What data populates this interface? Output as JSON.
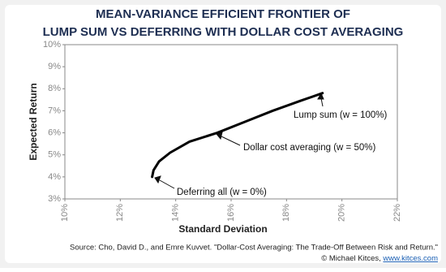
{
  "chart_data": {
    "type": "line",
    "title": [
      "MEAN-VARIANCE EFFICIENT FRONTIER OF",
      "LUMP SUM VS DEFERRING WITH DOLLAR COST AVERAGING"
    ],
    "x_label": "Standard Deviation",
    "y_label": "Expected Return",
    "x": [
      13.15,
      13.2,
      13.4,
      13.8,
      14.5,
      15.5,
      16.5,
      17.5,
      18.5,
      19.3
    ],
    "series": [
      {
        "color": "#000000",
        "values": [
          4.0,
          4.3,
          4.7,
          5.1,
          5.6,
          6.0,
          6.5,
          7.0,
          7.45,
          7.8
        ]
      }
    ],
    "xlim": [
      10,
      22
    ],
    "xticks": [
      {
        "value": 10,
        "label": "10%"
      },
      {
        "value": 12,
        "label": "12%"
      },
      {
        "value": 14,
        "label": "14%"
      },
      {
        "value": 16,
        "label": "16%"
      },
      {
        "value": 18,
        "label": "18%"
      },
      {
        "value": 20,
        "label": "20%"
      },
      {
        "value": 22,
        "label": "22%"
      }
    ],
    "ylim": [
      3,
      10
    ],
    "yticks": [
      {
        "value": 3,
        "label": "3%"
      },
      {
        "value": 4,
        "label": "4%"
      },
      {
        "value": 5,
        "label": "5%"
      },
      {
        "value": 6,
        "label": "6%"
      },
      {
        "value": 7,
        "label": "7%"
      },
      {
        "value": 8,
        "label": "8%"
      },
      {
        "value": 9,
        "label": "9%"
      },
      {
        "value": 10,
        "label": "10%"
      }
    ],
    "annotations": [
      "Lump sum (w = 100%)",
      "Dollar cost averaging (w = 50%)",
      "Deferring all (w = 0%)"
    ],
    "source": "Source: Cho, David D.,  and Emre Kuvvet. \"Dollar-Cost Averaging: The Trade-Off Between Risk and Return.\"",
    "credit": "© Michael Kitces, ",
    "credit_link": "www.kitces.com"
  }
}
